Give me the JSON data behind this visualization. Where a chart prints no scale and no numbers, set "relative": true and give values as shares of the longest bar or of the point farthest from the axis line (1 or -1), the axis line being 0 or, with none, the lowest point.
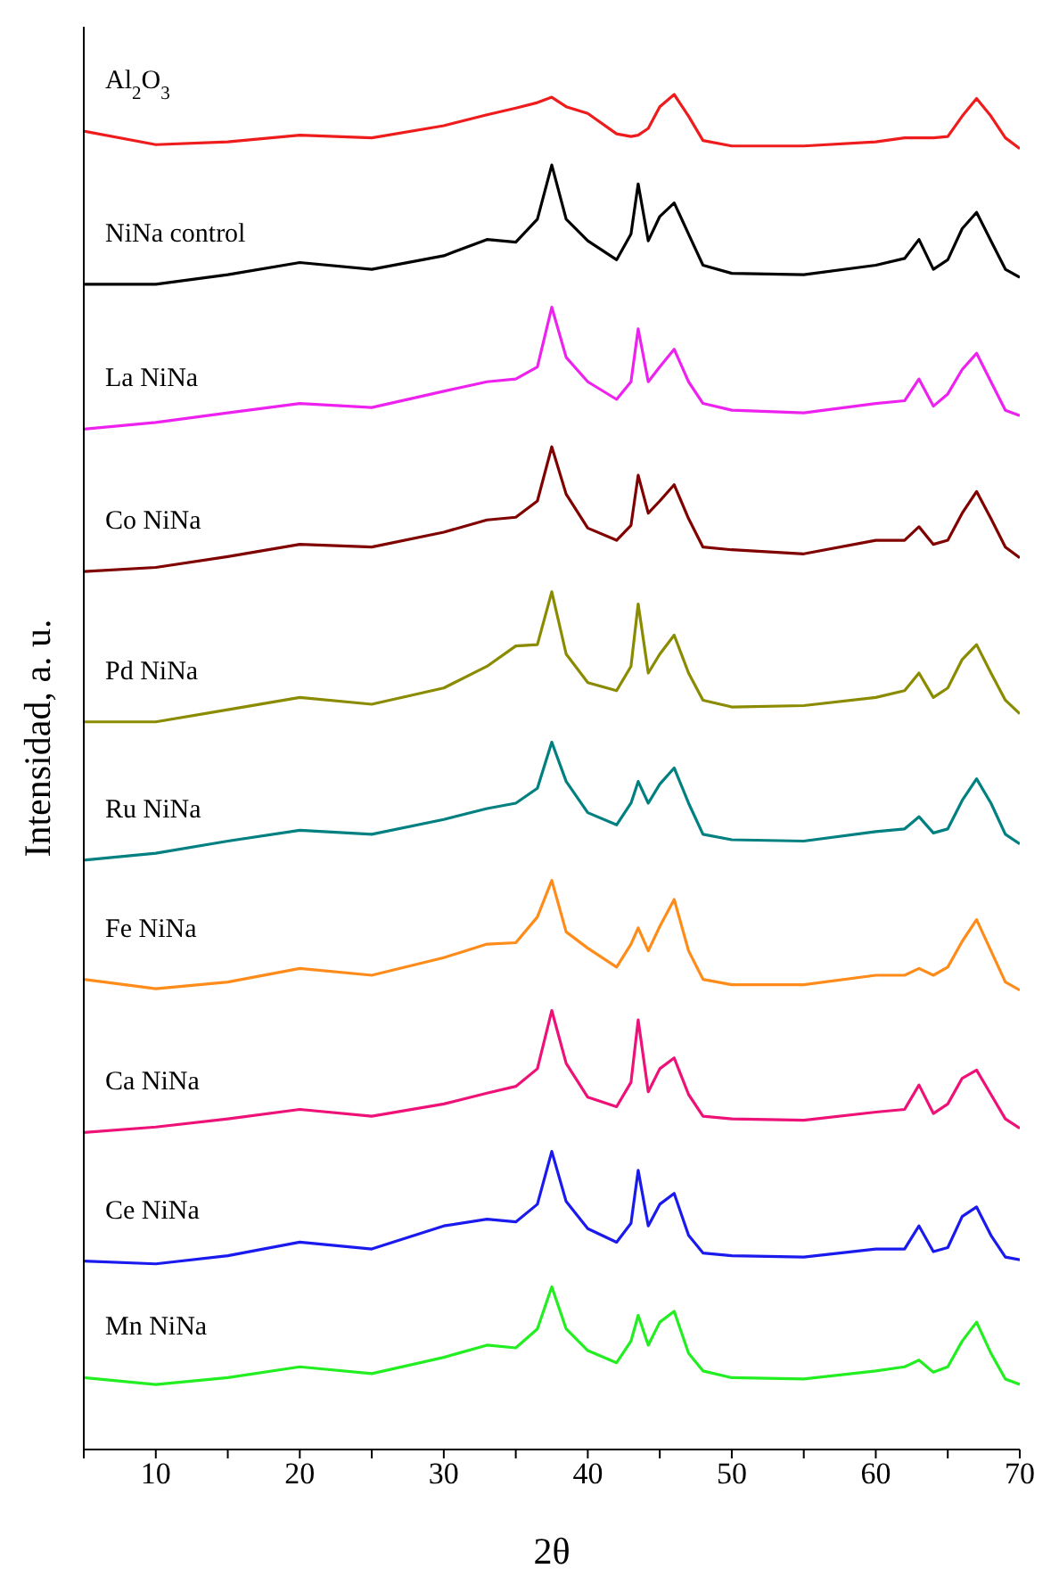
{
  "chart_data": {
    "type": "line",
    "relative": true,
    "xlabel": "2θ",
    "ylabel": "Intensidad, a. u.",
    "xlim": [
      5,
      70
    ],
    "xticks": [
      {
        "value": 5,
        "label": null
      },
      10,
      {
        "value": 15,
        "label": null
      },
      20,
      {
        "value": 25,
        "label": null
      },
      30,
      {
        "value": 35,
        "label": null
      },
      40,
      {
        "value": 45,
        "label": null
      },
      50,
      {
        "value": 55,
        "label": null
      },
      60,
      {
        "value": 65,
        "label": null
      },
      70
    ],
    "grid": false,
    "legend": false,
    "marker": "none",
    "line_style": "solid",
    "x": [
      5,
      10,
      15,
      20,
      25,
      30,
      33,
      35,
      36.5,
      37.5,
      38.5,
      40,
      42,
      43,
      43.5,
      44.2,
      45,
      46,
      47,
      48,
      50,
      55,
      60,
      62,
      63,
      64,
      65,
      66,
      67,
      68,
      69,
      70
    ],
    "series": [
      {
        "name": "Al$_{2}$O$_{3}$",
        "color": "#ee1c1c",
        "values": [
          0.973,
          0.963,
          0.965,
          0.97,
          0.968,
          0.977,
          0.985,
          0.99,
          0.994,
          0.998,
          0.991,
          0.986,
          0.971,
          0.969,
          0.97,
          0.975,
          0.991,
          1.0,
          0.984,
          0.966,
          0.962,
          0.962,
          0.965,
          0.968,
          0.968,
          0.968,
          0.969,
          0.984,
          0.997,
          0.984,
          0.968,
          0.96
        ]
      },
      {
        "name": "NiNa control",
        "color": "#000000",
        "values": [
          0.86,
          0.86,
          0.867,
          0.876,
          0.871,
          0.881,
          0.893,
          0.891,
          0.908,
          0.948,
          0.908,
          0.892,
          0.878,
          0.897,
          0.934,
          0.892,
          0.91,
          0.92,
          0.897,
          0.874,
          0.868,
          0.867,
          0.874,
          0.879,
          0.893,
          0.871,
          0.878,
          0.901,
          0.913,
          0.892,
          0.871,
          0.865
        ]
      },
      {
        "name": "La NiNa",
        "color": "#ee22ee",
        "values": [
          0.753,
          0.758,
          0.765,
          0.772,
          0.769,
          0.781,
          0.788,
          0.79,
          0.799,
          0.843,
          0.806,
          0.788,
          0.775,
          0.788,
          0.827,
          0.788,
          0.799,
          0.812,
          0.788,
          0.772,
          0.767,
          0.765,
          0.772,
          0.774,
          0.79,
          0.77,
          0.779,
          0.797,
          0.809,
          0.788,
          0.767,
          0.763
        ]
      },
      {
        "name": "Co NiNa",
        "color": "#800000",
        "values": [
          0.648,
          0.651,
          0.659,
          0.668,
          0.666,
          0.677,
          0.686,
          0.688,
          0.7,
          0.74,
          0.705,
          0.68,
          0.671,
          0.682,
          0.719,
          0.691,
          0.7,
          0.712,
          0.687,
          0.666,
          0.664,
          0.661,
          0.671,
          0.671,
          0.681,
          0.668,
          0.671,
          0.691,
          0.707,
          0.687,
          0.666,
          0.658
        ]
      },
      {
        "name": "Pd NiNa",
        "color": "#8b8b00",
        "values": [
          0.537,
          0.537,
          0.546,
          0.555,
          0.55,
          0.562,
          0.578,
          0.593,
          0.594,
          0.633,
          0.587,
          0.566,
          0.56,
          0.578,
          0.624,
          0.573,
          0.587,
          0.601,
          0.573,
          0.553,
          0.548,
          0.549,
          0.555,
          0.56,
          0.573,
          0.555,
          0.562,
          0.583,
          0.594,
          0.573,
          0.553,
          0.543
        ]
      },
      {
        "name": "Ru NiNa",
        "color": "#008080",
        "values": [
          0.435,
          0.44,
          0.449,
          0.457,
          0.454,
          0.465,
          0.473,
          0.477,
          0.488,
          0.522,
          0.493,
          0.47,
          0.461,
          0.477,
          0.493,
          0.477,
          0.491,
          0.503,
          0.477,
          0.454,
          0.45,
          0.449,
          0.456,
          0.458,
          0.467,
          0.455,
          0.458,
          0.479,
          0.495,
          0.477,
          0.454,
          0.447
        ]
      },
      {
        "name": "Fe NiNa",
        "color": "#ff8c1a",
        "values": [
          0.347,
          0.34,
          0.345,
          0.355,
          0.35,
          0.363,
          0.373,
          0.374,
          0.393,
          0.42,
          0.382,
          0.37,
          0.356,
          0.373,
          0.385,
          0.368,
          0.386,
          0.406,
          0.368,
          0.347,
          0.343,
          0.343,
          0.35,
          0.35,
          0.355,
          0.35,
          0.356,
          0.375,
          0.391,
          0.368,
          0.345,
          0.339
        ]
      },
      {
        "name": "Ca NiNa",
        "color": "#ee1177",
        "values": [
          0.234,
          0.238,
          0.244,
          0.251,
          0.246,
          0.255,
          0.263,
          0.268,
          0.281,
          0.324,
          0.285,
          0.26,
          0.253,
          0.271,
          0.317,
          0.264,
          0.281,
          0.289,
          0.262,
          0.246,
          0.244,
          0.243,
          0.249,
          0.251,
          0.269,
          0.248,
          0.255,
          0.274,
          0.28,
          0.262,
          0.244,
          0.237
        ]
      },
      {
        "name": "Ce NiNa",
        "color": "#1a1aee",
        "values": [
          0.139,
          0.137,
          0.143,
          0.153,
          0.148,
          0.165,
          0.17,
          0.168,
          0.181,
          0.22,
          0.183,
          0.163,
          0.153,
          0.167,
          0.206,
          0.165,
          0.181,
          0.189,
          0.158,
          0.145,
          0.143,
          0.142,
          0.148,
          0.148,
          0.165,
          0.146,
          0.149,
          0.172,
          0.179,
          0.158,
          0.142,
          0.14
        ]
      },
      {
        "name": "Mn NiNa",
        "color": "#22ee22",
        "values": [
          0.053,
          0.048,
          0.053,
          0.061,
          0.056,
          0.068,
          0.077,
          0.075,
          0.089,
          0.12,
          0.089,
          0.073,
          0.064,
          0.08,
          0.099,
          0.077,
          0.094,
          0.102,
          0.071,
          0.058,
          0.053,
          0.052,
          0.058,
          0.061,
          0.066,
          0.057,
          0.061,
          0.08,
          0.094,
          0.071,
          0.052,
          0.048
        ]
      }
    ]
  }
}
